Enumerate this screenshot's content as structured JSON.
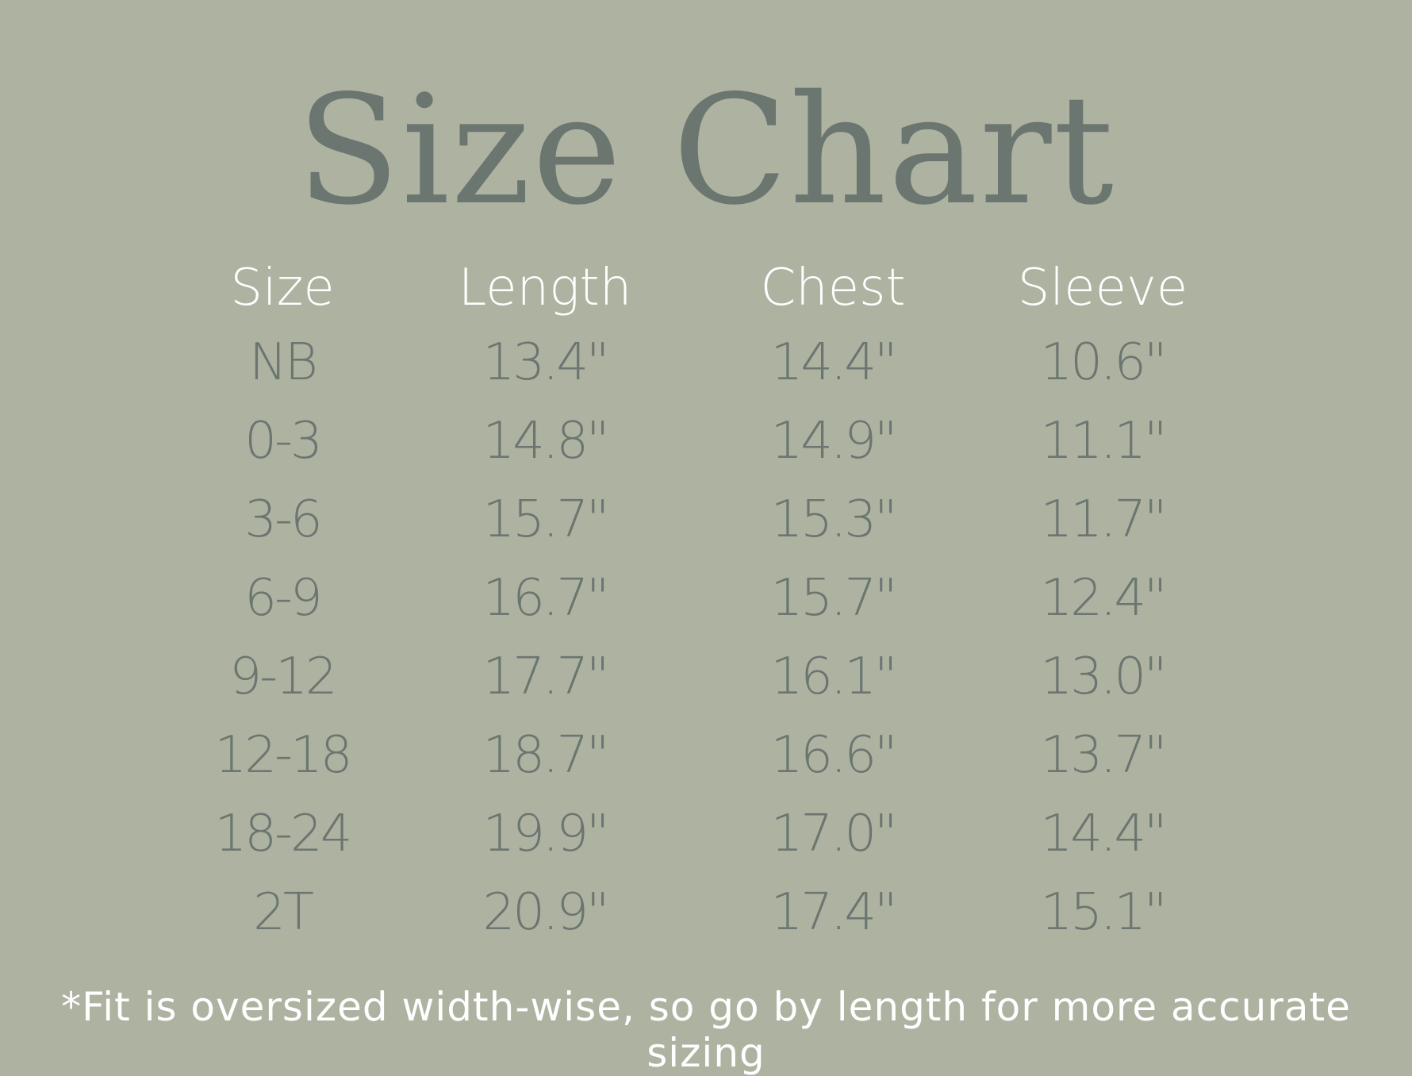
{
  "title": "Size Chart",
  "colors": {
    "background": "#aeb2a1",
    "title": "#6b7671",
    "header": "#ffffff",
    "values": "#6b7671"
  },
  "table": {
    "headers": [
      "Size",
      "Length",
      "Chest",
      "Sleeve"
    ],
    "rows": [
      [
        "NB",
        "13.4\"",
        "14.4\"",
        "10.6\""
      ],
      [
        "0-3",
        "14.8\"",
        "14.9\"",
        "11.1\""
      ],
      [
        "3-6",
        "15.7\"",
        "15.3\"",
        "11.7\""
      ],
      [
        "6-9",
        "16.7\"",
        "15.7\"",
        "12.4\""
      ],
      [
        "9-12",
        "17.7\"",
        "16.1\"",
        "13.0\""
      ],
      [
        "12-18",
        "18.7\"",
        "16.6\"",
        "13.7\""
      ],
      [
        "18-24",
        "19.9\"",
        "17.0\"",
        "14.4\""
      ],
      [
        "2T",
        "20.9\"",
        "17.4\"",
        "15.1\""
      ]
    ]
  },
  "footnote": "*Fit is oversized width-wise, so go by length for more accurate sizing"
}
